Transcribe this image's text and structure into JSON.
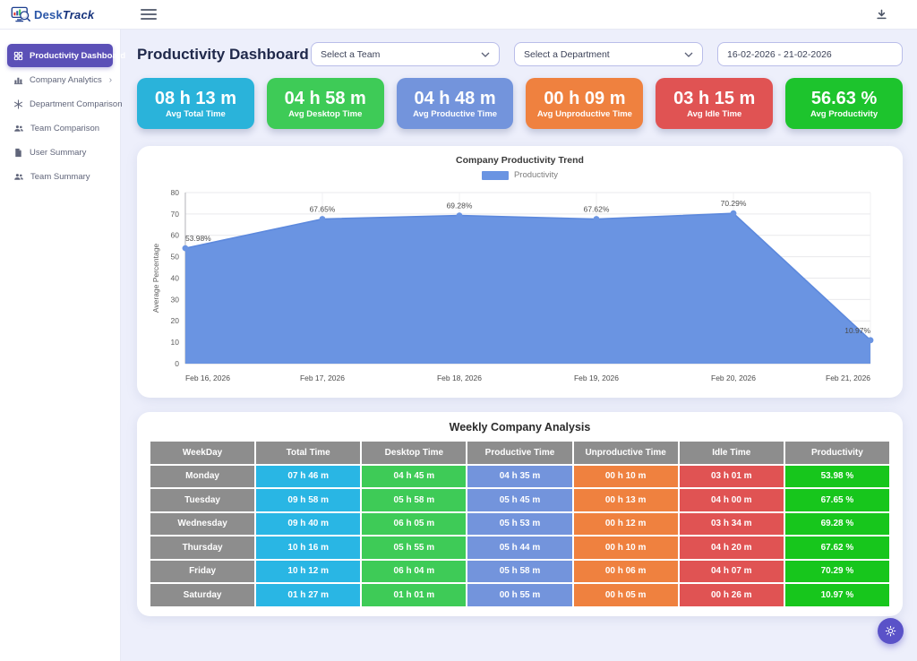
{
  "navbar": {
    "logo": {
      "desk": "Desk",
      "track": "Track"
    }
  },
  "sidebar": {
    "items": [
      {
        "label": "Productivity Dashboard",
        "icon": "grid-icon",
        "active": true
      },
      {
        "label": "Company Analytics",
        "icon": "bar-chart-icon",
        "chevron": "›",
        "active": false
      },
      {
        "label": "Department Comparison",
        "icon": "snowflake-icon",
        "active": false
      },
      {
        "label": "Team Comparison",
        "icon": "users-icon",
        "active": false
      },
      {
        "label": "User Summary",
        "icon": "document-icon",
        "active": false
      },
      {
        "label": "Team Summary",
        "icon": "users-icon",
        "active": false
      }
    ]
  },
  "header": {
    "title": "Productivity Dashboard",
    "team_select": {
      "value": "Select a Team"
    },
    "department_select": {
      "value": "Select a Department"
    },
    "date_range": {
      "value": "16-02-2026 - 21-02-2026"
    }
  },
  "stat_cards": [
    {
      "value": "08 h 13 m",
      "label": "Avg Total Time",
      "color": "#2ab3da"
    },
    {
      "value": "04 h 58 m",
      "label": "Avg Desktop Time",
      "color": "#3ecb57"
    },
    {
      "value": "04 h 48 m",
      "label": "Avg Productive Time",
      "color": "#7394dc"
    },
    {
      "value": "00 h 09 m",
      "label": "Avg Unproductive Time",
      "color": "#ef813f"
    },
    {
      "value": "03 h 15 m",
      "label": "Avg Idle Time",
      "color": "#e05353"
    },
    {
      "value": "56.63 %",
      "label": "Avg Productivity",
      "color": "#1dc42d"
    }
  ],
  "chart_data": {
    "type": "area",
    "title": "Company Productivity Trend",
    "legend": [
      {
        "label": "Productivity",
        "color": "#6a94e2"
      }
    ],
    "x": [
      "Feb 16, 2026",
      "Feb 17, 2026",
      "Feb 18, 2026",
      "Feb 19, 2026",
      "Feb 20, 2026",
      "Feb 21, 2026"
    ],
    "values": [
      53.98,
      67.65,
      69.28,
      67.62,
      70.29,
      10.97
    ],
    "point_labels": [
      "53.98%",
      "67.65%",
      "69.28%",
      "67.62%",
      "70.29%",
      "10.97%"
    ],
    "xlabel": "",
    "ylabel": "Average Percentage",
    "ylim": [
      0,
      80
    ],
    "ytick_step": 10,
    "grid": true,
    "legend_position": "top",
    "fill_color": "#6a94e2",
    "line_color": "#5d89dd",
    "point_color": "#6a94e2"
  },
  "table": {
    "title": "Weekly Company Analysis",
    "headers": [
      "WeekDay",
      "Total Time",
      "Desktop Time",
      "Productive Time",
      "Unproductive Time",
      "Idle Time",
      "Productivity"
    ],
    "header_color": "#8d8d8d",
    "column_colors": [
      "#8d8d8d",
      "#29b6e4",
      "#3ecb57",
      "#7394dc",
      "#ef813f",
      "#e05353",
      "#17c61c"
    ],
    "rows": [
      [
        "Monday",
        "07 h 46 m",
        "04 h 45 m",
        "04 h 35 m",
        "00 h 10 m",
        "03 h 01 m",
        "53.98 %"
      ],
      [
        "Tuesday",
        "09 h 58 m",
        "05 h 58 m",
        "05 h 45 m",
        "00 h 13 m",
        "04 h 00 m",
        "67.65 %"
      ],
      [
        "Wednesday",
        "09 h 40 m",
        "06 h 05 m",
        "05 h 53 m",
        "00 h 12 m",
        "03 h 34 m",
        "69.28 %"
      ],
      [
        "Thursday",
        "10 h 16 m",
        "05 h 55 m",
        "05 h 44 m",
        "00 h 10 m",
        "04 h 20 m",
        "67.62 %"
      ],
      [
        "Friday",
        "10 h 12 m",
        "06 h 04 m",
        "05 h 58 m",
        "00 h 06 m",
        "04 h 07 m",
        "70.29 %"
      ],
      [
        "Saturday",
        "01 h 27 m",
        "01 h 01 m",
        "00 h 55 m",
        "00 h 05 m",
        "00 h 26 m",
        "10.97 %"
      ]
    ]
  },
  "fab": {
    "icon": "gear-icon"
  }
}
